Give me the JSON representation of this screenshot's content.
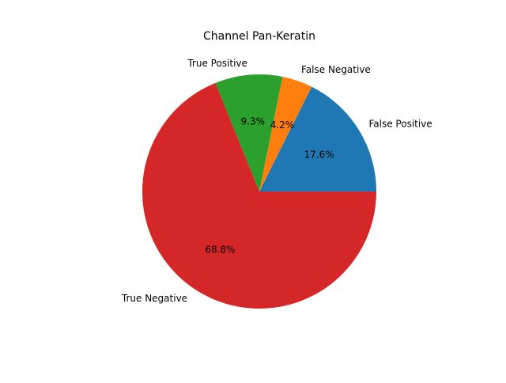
{
  "chart_data": {
    "type": "pie",
    "title": "Channel Pan-Keratin",
    "slices": [
      {
        "label": "False Positive",
        "value": 17.6,
        "pct_label": "17.6%",
        "color": "#1f77b4"
      },
      {
        "label": "False Negative",
        "value": 4.2,
        "pct_label": "4.2%",
        "color": "#ff7f0e"
      },
      {
        "label": "True Positive",
        "value": 9.3,
        "pct_label": "9.3%",
        "color": "#2ca02c"
      },
      {
        "label": "True Negative",
        "value": 68.8,
        "pct_label": "68.8%",
        "color": "#d62728"
      }
    ],
    "start_angle_deg": 0,
    "direction": "counterclockwise",
    "legend": "none",
    "grid": false
  }
}
